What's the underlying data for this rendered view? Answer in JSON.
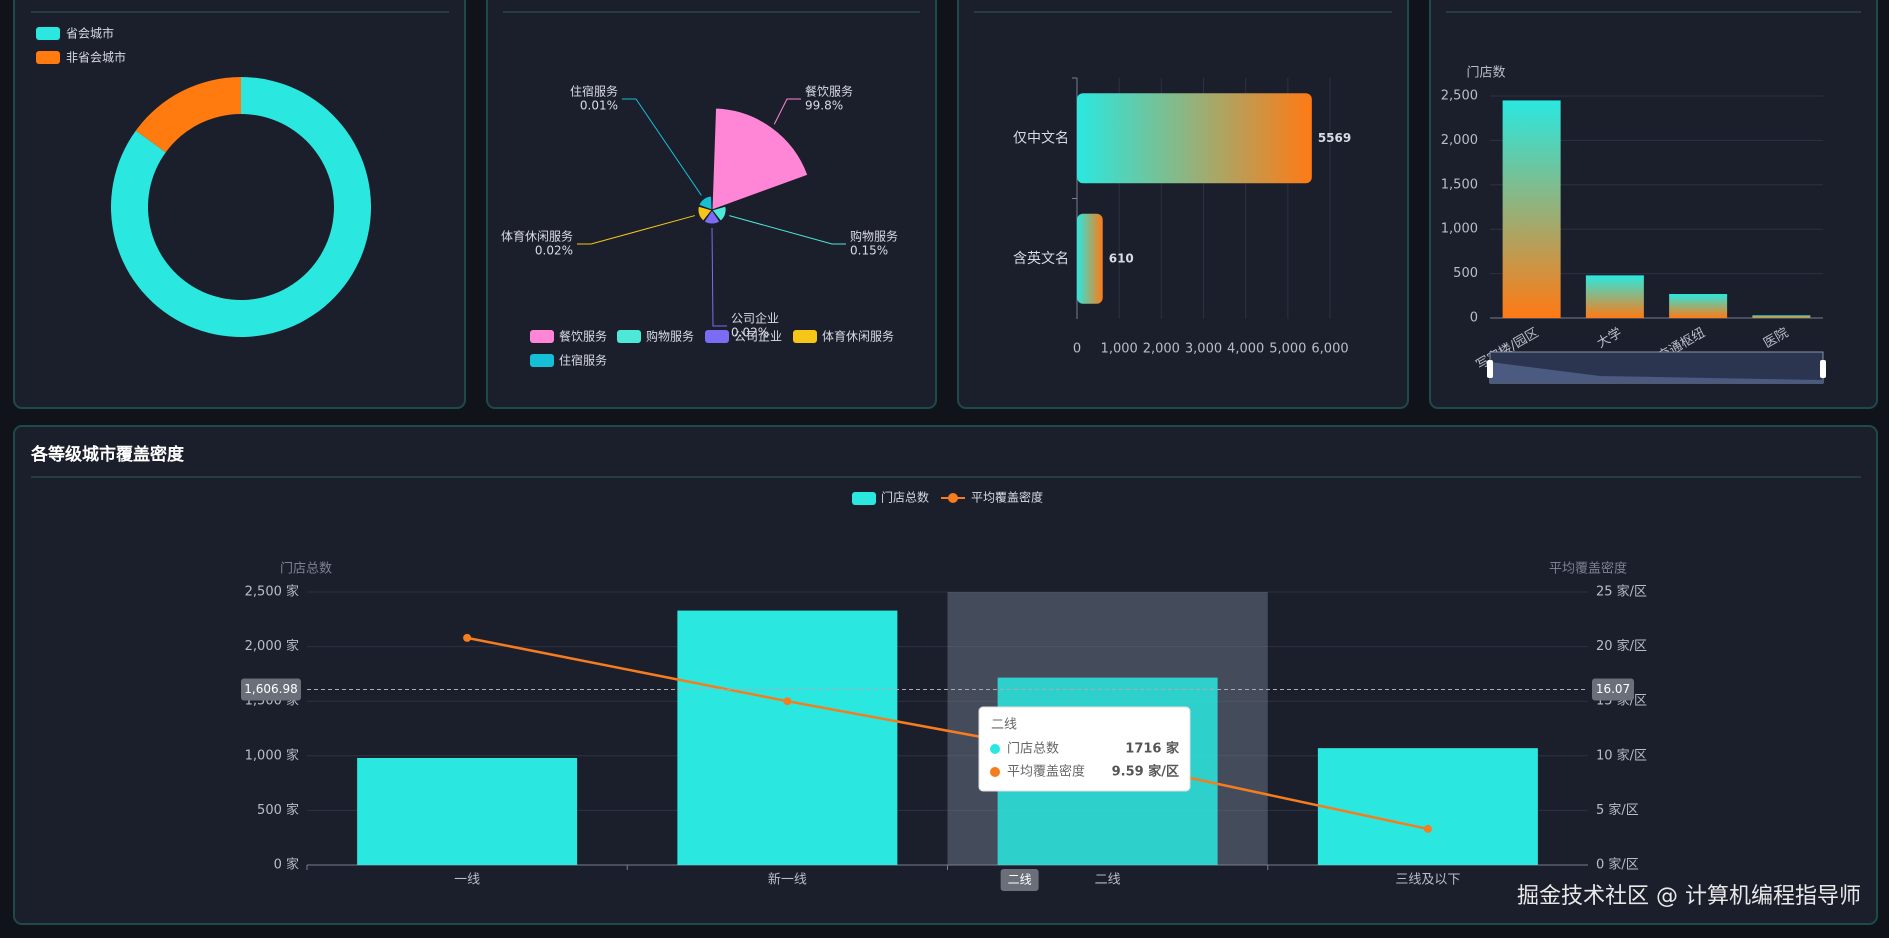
{
  "chart_data": [
    {
      "type": "donut",
      "categories": [
        "省会城市",
        "非省会城市"
      ],
      "values": [
        85,
        15
      ],
      "colors": [
        "#2ae8e0",
        "#ff7a0f"
      ]
    },
    {
      "type": "rose",
      "categories": [
        "餐饮服务",
        "购物服务",
        "公司企业",
        "体育休闲服务",
        "住宿服务"
      ],
      "values": [
        99.8,
        0.15,
        0.02,
        0.02,
        0.01
      ],
      "value_labels": [
        "99.8%",
        "0.15%",
        "0.02%",
        "0.02%",
        "0.01%"
      ],
      "colors": [
        "#ff85d6",
        "#4de8d8",
        "#7b6cf6",
        "#f5c518",
        "#15bfd6"
      ]
    },
    {
      "type": "hbar",
      "categories": [
        "仅中文名",
        "含英文名"
      ],
      "values": [
        5569,
        610
      ],
      "xlim": [
        0,
        6000
      ],
      "xticks": [
        0,
        {
          "value": 1000,
          "label": "1,000"
        },
        {
          "value": 2000,
          "label": "2,000"
        },
        {
          "value": 3000,
          "label": "3,000"
        },
        {
          "value": 4000,
          "label": "4,000"
        },
        {
          "value": 5000,
          "label": "5,000"
        },
        {
          "value": 6000,
          "label": "6,000"
        }
      ],
      "grid": true
    },
    {
      "type": "bar",
      "y_label": "门店数",
      "categories": [
        "写字楼/园区",
        "大学",
        "交通枢纽",
        "医院"
      ],
      "values": [
        2450,
        480,
        270,
        30
      ],
      "ylim": [
        0,
        2500
      ],
      "yticks": [
        0,
        500,
        {
          "value": 1000,
          "label": "1,000"
        },
        {
          "value": 1500,
          "label": "1,500"
        },
        {
          "value": 2000,
          "label": "2,000"
        },
        {
          "value": 2500,
          "label": "2,500"
        }
      ],
      "grid": true
    },
    {
      "type": "combo",
      "title": "各等级城市覆盖密度",
      "categories": [
        "一线",
        "新一线",
        "二线",
        "三线及以下"
      ],
      "series": [
        {
          "name": "门店总数",
          "type": "bar",
          "color": "#2ae8e0",
          "values": [
            980,
            2330,
            1716,
            1070
          ]
        },
        {
          "name": "平均覆盖密度",
          "type": "line",
          "color": "#f57c1f",
          "axis": "y2",
          "values": [
            20.8,
            15.0,
            9.59,
            3.3
          ]
        }
      ],
      "y_label": "门店总数",
      "y2_label": "平均覆盖密度",
      "ylim": [
        0,
        2500
      ],
      "yticks": [
        {
          "value": 0,
          "label": "0 家"
        },
        {
          "value": 500,
          "label": "500 家"
        },
        {
          "value": 1000,
          "label": "1,000 家"
        },
        {
          "value": 1500,
          "label": "1,500 家"
        },
        {
          "value": 2000,
          "label": "2,000 家"
        },
        {
          "value": 2500,
          "label": "2,500 家"
        }
      ],
      "y2lim": [
        0,
        25
      ],
      "y2ticks": [
        {
          "value": 0,
          "label": "0 家/区"
        },
        {
          "value": 5,
          "label": "5 家/区"
        },
        {
          "value": 10,
          "label": "10 家/区"
        },
        {
          "value": 15,
          "label": "15 家/区"
        },
        {
          "value": 20,
          "label": "20 家/区"
        },
        {
          "value": 25,
          "label": "25 家/区"
        }
      ],
      "grid": true,
      "axis_pointer": {
        "y": {
          "value": 1606.98,
          "label": "1,606.98"
        },
        "y2": {
          "value": 16.07,
          "label": "16.07"
        }
      },
      "tooltip": {
        "title": "二线",
        "value_labels": [
          "1716 家",
          "9.59 家/区"
        ]
      }
    }
  ],
  "watermark": "掘金技术社区 @ 计算机编程指导师"
}
